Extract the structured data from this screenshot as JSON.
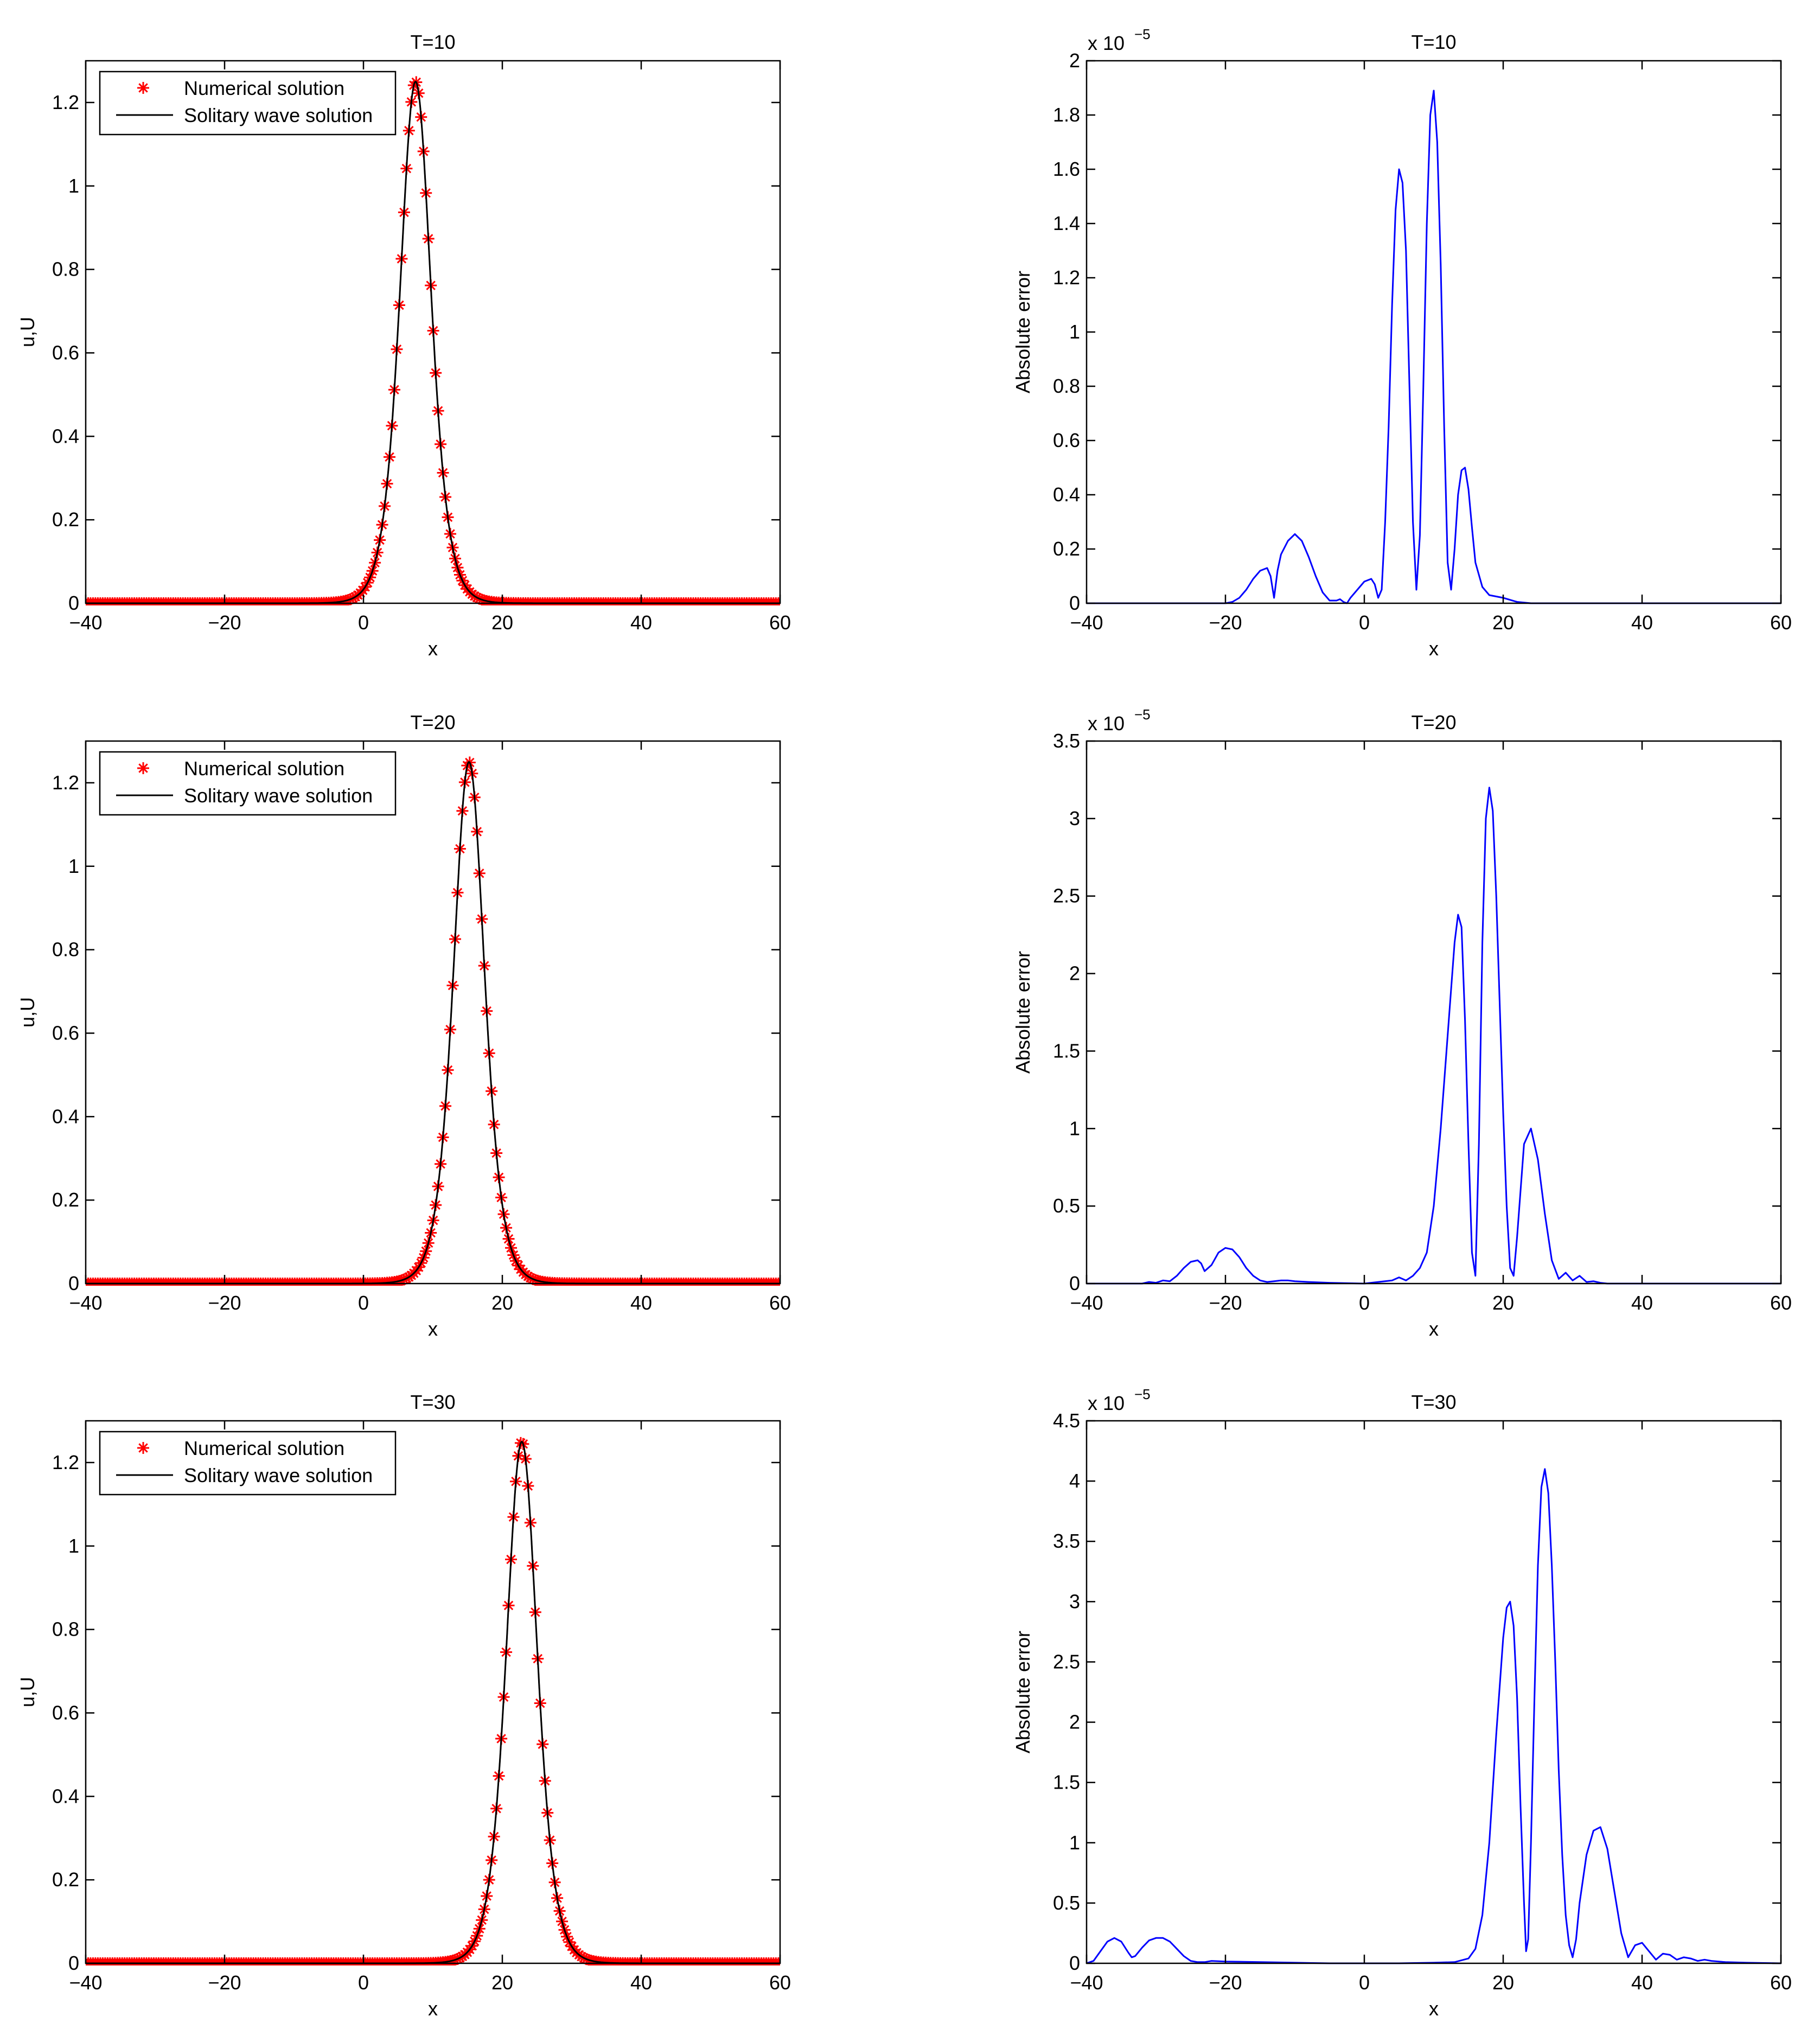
{
  "figure": {
    "panel_count": 6
  },
  "chart_data": [
    {
      "id": "u10",
      "type": "line+scatter",
      "title": "T=10",
      "xlabel": "x",
      "ylabel": "u,U",
      "xlim": [
        -40,
        60
      ],
      "ylim": [
        0,
        1.3
      ],
      "xticks": [
        -40,
        -20,
        0,
        20,
        40,
        60
      ],
      "yticks": [
        0,
        0.2,
        0.4,
        0.6,
        0.8,
        1,
        1.2
      ],
      "ytick_labels": [
        "0",
        "0.2",
        "0.4",
        "0.6",
        "0.8",
        "1",
        "1.2"
      ],
      "legend": {
        "position": "top-left",
        "entries": [
          {
            "label": "Numerical solution",
            "marker": "*",
            "color": "#ff0000"
          },
          {
            "label": "Solitary wave solution",
            "line": "solid",
            "color": "#000000"
          }
        ]
      },
      "series": [
        {
          "name": "Numerical solution",
          "kind": "scatter",
          "color": "#ff0000",
          "function": "sech2",
          "amplitude": 1.25,
          "center": 7.5,
          "width": 3.0,
          "x_start": -40,
          "x_end": 60,
          "x_step": 0.35
        },
        {
          "name": "Solitary wave solution",
          "kind": "line",
          "color": "#000000",
          "function": "sech2",
          "amplitude": 1.25,
          "center": 7.5,
          "width": 3.0,
          "x_start": -40,
          "x_end": 60,
          "x_step": 0.1
        }
      ]
    },
    {
      "id": "e10",
      "type": "line",
      "title": "T=10",
      "xlabel": "x",
      "ylabel": "Absolute error",
      "exponent_label": "x 10",
      "exponent": "−5",
      "xlim": [
        -40,
        60
      ],
      "ylim": [
        0,
        2
      ],
      "xticks": [
        -40,
        -20,
        0,
        20,
        40,
        60
      ],
      "yticks": [
        0,
        0.2,
        0.4,
        0.6,
        0.8,
        1,
        1.2,
        1.4,
        1.6,
        1.8,
        2
      ],
      "ytick_labels": [
        "0",
        "0.2",
        "0.4",
        "0.6",
        "0.8",
        "1",
        "1.2",
        "1.4",
        "1.6",
        "1.8",
        "2"
      ],
      "series": [
        {
          "name": "",
          "kind": "line",
          "color": "#0000ff",
          "x": [
            -40,
            -20,
            -19,
            -18,
            -17,
            -16,
            -15,
            -14,
            -13.5,
            -13,
            -12.5,
            -12,
            -11,
            -10,
            -9,
            -8,
            -7,
            -6,
            -5,
            -4,
            -3.5,
            -3,
            -2.5,
            -2,
            -1,
            0,
            1,
            1.5,
            2,
            2.5,
            3,
            3.5,
            4,
            4.5,
            5,
            5.5,
            6,
            6.5,
            7,
            7.5,
            8,
            8.5,
            9,
            9.5,
            10,
            10.5,
            11,
            11.5,
            12,
            12.5,
            13,
            13.5,
            14,
            14.5,
            15,
            15.5,
            16,
            17,
            18,
            20,
            22,
            24,
            60
          ],
          "y": [
            0,
            0,
            0.005,
            0.02,
            0.05,
            0.09,
            0.12,
            0.13,
            0.1,
            0.02,
            0.12,
            0.18,
            0.23,
            0.255,
            0.23,
            0.17,
            0.1,
            0.04,
            0.01,
            0.01,
            0.015,
            0.005,
            0.0,
            0.02,
            0.05,
            0.08,
            0.09,
            0.07,
            0.02,
            0.05,
            0.3,
            0.65,
            1.1,
            1.45,
            1.6,
            1.55,
            1.3,
            0.8,
            0.3,
            0.05,
            0.25,
            0.8,
            1.4,
            1.8,
            1.89,
            1.7,
            1.25,
            0.65,
            0.15,
            0.05,
            0.2,
            0.4,
            0.49,
            0.5,
            0.42,
            0.28,
            0.15,
            0.06,
            0.03,
            0.02,
            0.005,
            0,
            0
          ]
        }
      ]
    },
    {
      "id": "u20",
      "type": "line+scatter",
      "title": "T=20",
      "xlabel": "x",
      "ylabel": "u,U",
      "xlim": [
        -40,
        60
      ],
      "ylim": [
        0,
        1.3
      ],
      "xticks": [
        -40,
        -20,
        0,
        20,
        40,
        60
      ],
      "yticks": [
        0,
        0.2,
        0.4,
        0.6,
        0.8,
        1,
        1.2
      ],
      "ytick_labels": [
        "0",
        "0.2",
        "0.4",
        "0.6",
        "0.8",
        "1",
        "1.2"
      ],
      "legend": {
        "position": "top-left",
        "entries": [
          {
            "label": "Numerical solution",
            "marker": "*",
            "color": "#ff0000"
          },
          {
            "label": "Solitary wave solution",
            "line": "solid",
            "color": "#000000"
          }
        ]
      },
      "series": [
        {
          "name": "Numerical solution",
          "kind": "scatter",
          "color": "#ff0000",
          "function": "sech2",
          "amplitude": 1.25,
          "center": 15.2,
          "width": 3.0,
          "x_start": -40,
          "x_end": 60,
          "x_step": 0.35
        },
        {
          "name": "Solitary wave solution",
          "kind": "line",
          "color": "#000000",
          "function": "sech2",
          "amplitude": 1.25,
          "center": 15.2,
          "width": 3.0,
          "x_start": -40,
          "x_end": 60,
          "x_step": 0.1
        }
      ]
    },
    {
      "id": "e20",
      "type": "line",
      "title": "T=20",
      "xlabel": "x",
      "ylabel": "Absolute error",
      "exponent_label": "x 10",
      "exponent": "−5",
      "xlim": [
        -40,
        60
      ],
      "ylim": [
        0,
        3.5
      ],
      "xticks": [
        -40,
        -20,
        0,
        20,
        40,
        60
      ],
      "yticks": [
        0,
        0.5,
        1,
        1.5,
        2,
        2.5,
        3,
        3.5
      ],
      "ytick_labels": [
        "0",
        "0.5",
        "1",
        "1.5",
        "2",
        "2.5",
        "3",
        "3.5"
      ],
      "series": [
        {
          "name": "",
          "kind": "line",
          "color": "#0000ff",
          "x": [
            -40,
            -32,
            -31,
            -30,
            -29,
            -28,
            -27,
            -26,
            -25,
            -24,
            -23.5,
            -23,
            -22,
            -21,
            -20,
            -19,
            -18,
            -17,
            -16,
            -15,
            -14,
            -13,
            -12,
            -11,
            -10,
            -8,
            -5,
            0,
            2,
            4,
            5,
            6,
            7,
            8,
            9,
            10,
            11,
            12,
            13,
            13.5,
            14,
            14.5,
            15,
            15.5,
            16,
            16.5,
            17,
            17.5,
            18,
            18.5,
            19,
            19.5,
            20,
            20.5,
            21,
            21.5,
            22,
            22.5,
            23,
            24,
            25,
            26,
            27,
            28,
            29,
            30,
            31,
            32,
            33,
            34,
            35,
            36,
            60
          ],
          "y": [
            0,
            0,
            0.01,
            0.005,
            0.02,
            0.015,
            0.05,
            0.1,
            0.14,
            0.15,
            0.13,
            0.08,
            0.12,
            0.2,
            0.23,
            0.22,
            0.17,
            0.1,
            0.05,
            0.02,
            0.01,
            0.015,
            0.02,
            0.02,
            0.015,
            0.01,
            0.005,
            0,
            0.01,
            0.02,
            0.04,
            0.02,
            0.05,
            0.1,
            0.2,
            0.5,
            1.0,
            1.6,
            2.2,
            2.38,
            2.3,
            1.7,
            0.9,
            0.2,
            0.05,
            0.9,
            2.2,
            3.0,
            3.2,
            3.05,
            2.5,
            1.8,
            1.1,
            0.5,
            0.1,
            0.05,
            0.3,
            0.6,
            0.9,
            1.0,
            0.8,
            0.45,
            0.15,
            0.03,
            0.07,
            0.02,
            0.05,
            0.01,
            0.015,
            0.005,
            0.0,
            0,
            0
          ]
        }
      ]
    },
    {
      "id": "u30",
      "type": "line+scatter",
      "title": "T=30",
      "xlabel": "x",
      "ylabel": "u,U",
      "xlim": [
        -40,
        60
      ],
      "ylim": [
        0,
        1.3
      ],
      "xticks": [
        -40,
        -20,
        0,
        20,
        40,
        60
      ],
      "yticks": [
        0,
        0.2,
        0.4,
        0.6,
        0.8,
        1,
        1.2
      ],
      "ytick_labels": [
        "0",
        "0.2",
        "0.4",
        "0.6",
        "0.8",
        "1",
        "1.2"
      ],
      "legend": {
        "position": "top-left",
        "entries": [
          {
            "label": "Numerical solution",
            "marker": "*",
            "color": "#ff0000"
          },
          {
            "label": "Solitary wave solution",
            "line": "solid",
            "color": "#000000"
          }
        ]
      },
      "series": [
        {
          "name": "Numerical solution",
          "kind": "scatter",
          "color": "#ff0000",
          "function": "sech2",
          "amplitude": 1.25,
          "center": 22.8,
          "width": 3.0,
          "x_start": -40,
          "x_end": 60,
          "x_step": 0.35
        },
        {
          "name": "Solitary wave solution",
          "kind": "line",
          "color": "#000000",
          "function": "sech2",
          "amplitude": 1.25,
          "center": 22.8,
          "width": 3.0,
          "x_start": -40,
          "x_end": 60,
          "x_step": 0.1
        }
      ]
    },
    {
      "id": "e30",
      "type": "line",
      "title": "T=30",
      "xlabel": "x",
      "ylabel": "Absolute error",
      "exponent_label": "x 10",
      "exponent": "−5",
      "xlim": [
        -40,
        60
      ],
      "ylim": [
        0,
        4.5
      ],
      "xticks": [
        -40,
        -20,
        0,
        20,
        40,
        60
      ],
      "yticks": [
        0,
        0.5,
        1,
        1.5,
        2,
        2.5,
        3,
        3.5,
        4,
        4.5
      ],
      "ytick_labels": [
        "0",
        "0.5",
        "1",
        "1.5",
        "2",
        "2.5",
        "3",
        "3.5",
        "4",
        "4.5"
      ],
      "series": [
        {
          "name": "",
          "kind": "line",
          "color": "#0000ff",
          "x": [
            -40,
            -39,
            -38,
            -37,
            -36,
            -35,
            -34,
            -33.5,
            -33,
            -32,
            -31,
            -30,
            -29,
            -28,
            -27,
            -26,
            -25,
            -24,
            -23,
            -22,
            -20,
            -15,
            -10,
            -5,
            0,
            5,
            10,
            13,
            15,
            16,
            17,
            18,
            19,
            20,
            20.5,
            21,
            21.5,
            22,
            22.5,
            23,
            23.3,
            23.6,
            24,
            24.5,
            25,
            25.5,
            26,
            26.5,
            27,
            27.5,
            28,
            28.5,
            29,
            29.5,
            30,
            30.5,
            31,
            32,
            33,
            34,
            35,
            36,
            37,
            38,
            39,
            40,
            41,
            42,
            43,
            44,
            45,
            46,
            47,
            48,
            49,
            50,
            52,
            55,
            60
          ],
          "y": [
            0,
            0.02,
            0.1,
            0.18,
            0.21,
            0.18,
            0.09,
            0.05,
            0.06,
            0.13,
            0.19,
            0.21,
            0.21,
            0.18,
            0.12,
            0.06,
            0.02,
            0.01,
            0.01,
            0.02,
            0.015,
            0.01,
            0.005,
            0,
            0,
            0,
            0.005,
            0.01,
            0.04,
            0.12,
            0.4,
            1.0,
            1.9,
            2.7,
            2.95,
            3.0,
            2.8,
            2.2,
            1.3,
            0.5,
            0.1,
            0.2,
            1.0,
            2.2,
            3.3,
            3.95,
            4.1,
            3.9,
            3.3,
            2.5,
            1.6,
            0.9,
            0.4,
            0.15,
            0.05,
            0.2,
            0.5,
            0.9,
            1.1,
            1.13,
            0.95,
            0.6,
            0.25,
            0.05,
            0.15,
            0.17,
            0.1,
            0.03,
            0.08,
            0.07,
            0.03,
            0.05,
            0.04,
            0.02,
            0.03,
            0.02,
            0.01,
            0.005,
            0
          ]
        }
      ]
    }
  ]
}
